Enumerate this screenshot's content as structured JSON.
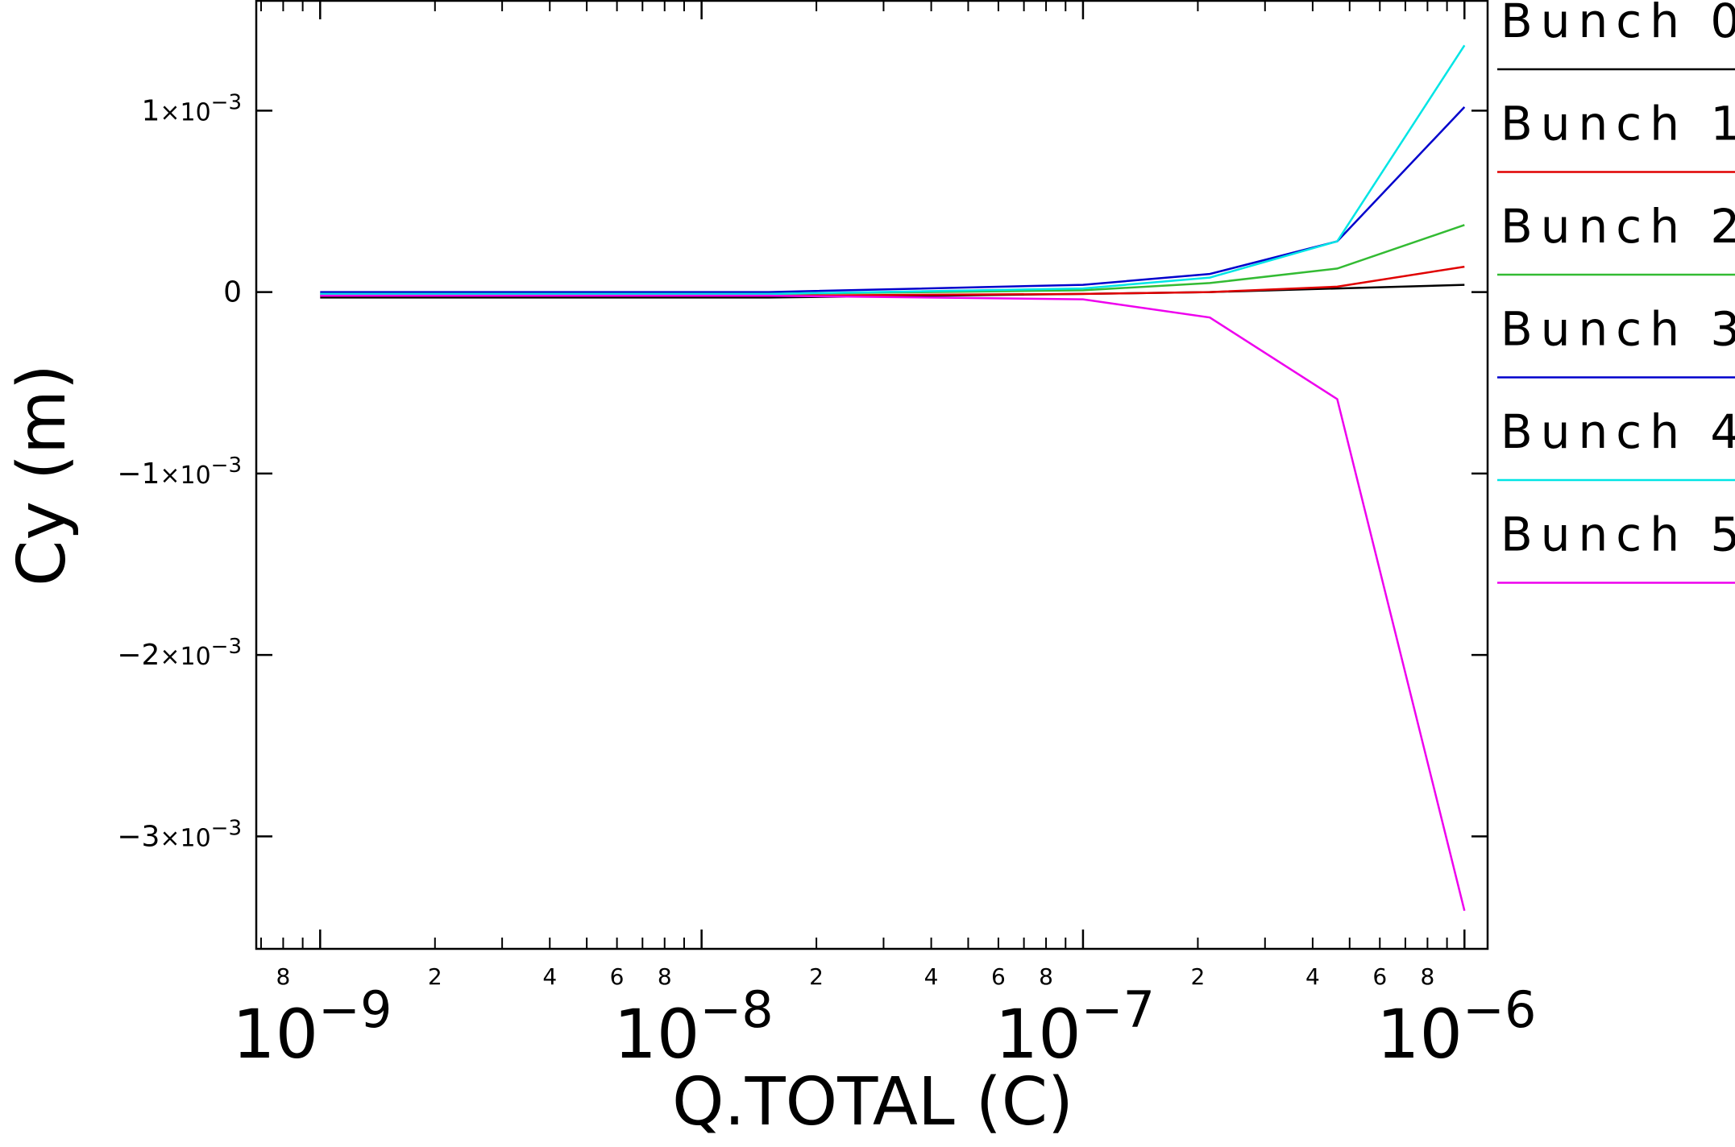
{
  "chart_data": {
    "type": "line",
    "xlabel": "Q.TOTAL (C)",
    "ylabel": "Cy (m)",
    "x_scale": "log",
    "xlim": [
      6.8e-10,
      1.15e-06
    ],
    "ylim": [
      -0.00362,
      0.00161
    ],
    "grid": false,
    "legend_position": "right",
    "x_decade_labels": [
      {
        "x": 1e-09,
        "base": "10",
        "exp": "−9"
      },
      {
        "x": 1e-08,
        "base": "10",
        "exp": "−8"
      },
      {
        "x": 1e-07,
        "base": "10",
        "exp": "−7"
      },
      {
        "x": 1e-06,
        "base": "10",
        "exp": "−6"
      }
    ],
    "x_minor_labels": [
      {
        "x": 8e-10,
        "text": "8"
      },
      {
        "x": 2e-09,
        "text": "2"
      },
      {
        "x": 4e-09,
        "text": "4"
      },
      {
        "x": 6e-09,
        "text": "6"
      },
      {
        "x": 8e-09,
        "text": "8"
      },
      {
        "x": 2e-08,
        "text": "2"
      },
      {
        "x": 4e-08,
        "text": "4"
      },
      {
        "x": 6e-08,
        "text": "6"
      },
      {
        "x": 8e-08,
        "text": "8"
      },
      {
        "x": 2e-07,
        "text": "2"
      },
      {
        "x": 4e-07,
        "text": "4"
      },
      {
        "x": 6e-07,
        "text": "6"
      },
      {
        "x": 8e-07,
        "text": "8"
      }
    ],
    "y_ticks": [
      {
        "y": 0.001,
        "mant": "1",
        "times": "×10",
        "exp": "−3"
      },
      {
        "y": 0,
        "mant": "0",
        "times": "",
        "exp": ""
      },
      {
        "y": -0.001,
        "mant": "−1",
        "times": "×10",
        "exp": "−3"
      },
      {
        "y": -0.002,
        "mant": "−2",
        "times": "×10",
        "exp": "−3"
      },
      {
        "y": -0.003,
        "mant": "−3",
        "times": "×10",
        "exp": "−3"
      }
    ],
    "x": [
      1e-09,
      1.5e-08,
      1e-07,
      2.15e-07,
      4.64e-07,
      1e-06
    ],
    "series": [
      {
        "name": "Bunch 0",
        "color": "#000000",
        "values": [
          -3e-05,
          -3e-05,
          -1e-05,
          0.0,
          2e-05,
          4e-05
        ]
      },
      {
        "name": "Bunch 1",
        "color": "#e00000",
        "values": [
          -2e-05,
          -2e-05,
          -1e-05,
          0.0,
          3e-05,
          0.00014
        ]
      },
      {
        "name": "Bunch 2",
        "color": "#33bb33",
        "values": [
          -1e-05,
          -1e-05,
          1e-05,
          5e-05,
          0.00013,
          0.00037
        ]
      },
      {
        "name": "Bunch 3",
        "color": "#0000cc",
        "values": [
          0.0,
          0.0,
          4e-05,
          0.0001,
          0.00028,
          0.00102
        ]
      },
      {
        "name": "Bunch 4",
        "color": "#00e5e5",
        "values": [
          -1e-05,
          -1e-05,
          2e-05,
          8e-05,
          0.00028,
          0.00136
        ]
      },
      {
        "name": "Bunch 5",
        "color": "#ee00ee",
        "values": [
          -2e-05,
          -2e-05,
          -4e-05,
          -0.00014,
          -0.00059,
          -0.00341
        ]
      }
    ]
  }
}
